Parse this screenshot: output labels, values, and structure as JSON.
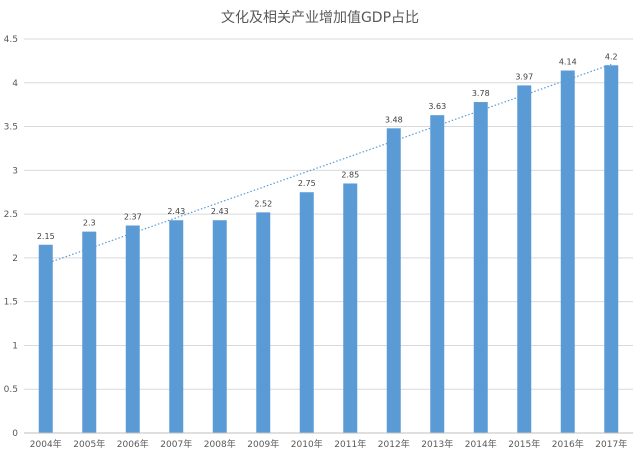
{
  "chart_data": {
    "type": "bar",
    "title": "文化及相关产业增加值GDP占比",
    "xlabel": "",
    "ylabel": "",
    "ylim": [
      0,
      4.5
    ],
    "ytick_step": 0.5,
    "yticks": [
      "0",
      "0.5",
      "1",
      "1.5",
      "2",
      "2.5",
      "3",
      "3.5",
      "4",
      "4.5"
    ],
    "categories": [
      "2004年",
      "2005年",
      "2006年",
      "2007年",
      "2008年",
      "2009年",
      "2010年",
      "2011年",
      "2012年",
      "2013年",
      "2014年",
      "2015年",
      "2016年",
      "2017年"
    ],
    "values": [
      2.15,
      2.3,
      2.37,
      2.43,
      2.43,
      2.52,
      2.75,
      2.85,
      3.48,
      3.63,
      3.78,
      3.97,
      4.14,
      4.2
    ],
    "data_labels": [
      "2.15",
      "2.3",
      "2.37",
      "2.43",
      "2.43",
      "2.52",
      "2.75",
      "2.85",
      "3.48",
      "3.63",
      "3.78",
      "3.97",
      "4.14",
      "4.2"
    ],
    "trendline": {
      "type": "linear",
      "style": "dotted"
    },
    "grid": true,
    "legend": "none",
    "colors": {
      "bar": "#5b9bd5",
      "trend": "#5b9bd5",
      "grid": "#d9d9d9",
      "axis": "#bfbfbf",
      "text": "#595959"
    }
  }
}
